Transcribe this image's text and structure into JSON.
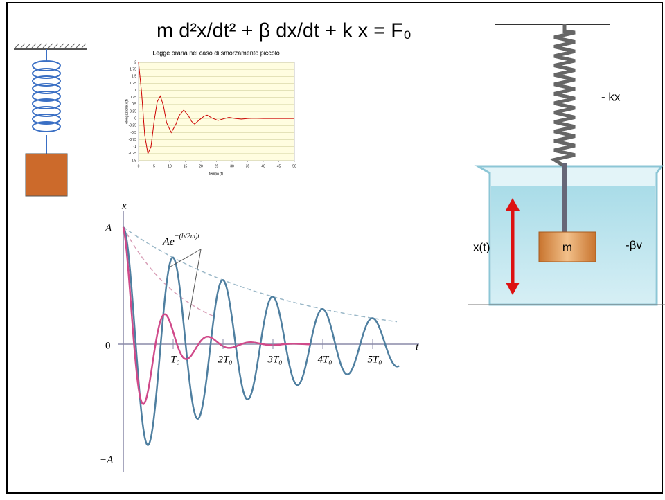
{
  "slide": {
    "equation": "m d²x/dt² + β dx/dt + k x = F₀"
  },
  "chart_data": {
    "type": "line",
    "title": "Legge oraria nel caso di smorzamento piccolo",
    "x_label": "tempo (t)",
    "y_label": "elongazione x(t)",
    "x": [
      0,
      1,
      2,
      3,
      4,
      5,
      6,
      7,
      8,
      9,
      10.5,
      12,
      13,
      14.5,
      16,
      17,
      18,
      19.5,
      21,
      22,
      23.5,
      25.5,
      27,
      29,
      31,
      33,
      35,
      37,
      40,
      45,
      50
    ],
    "values": [
      2,
      0.9,
      -0.6,
      -1.25,
      -1.0,
      -0.1,
      0.6,
      0.8,
      0.45,
      -0.15,
      -0.5,
      -0.2,
      0.1,
      0.3,
      0.1,
      -0.1,
      -0.2,
      -0.05,
      0.08,
      0.12,
      0.02,
      -0.07,
      -0.02,
      0.04,
      0,
      -0.02,
      0,
      0.01,
      0,
      0,
      0
    ],
    "color": "#cc0000",
    "xlim": [
      0,
      50
    ],
    "ylim": [
      -1.5,
      2
    ],
    "xticks": [
      0,
      5,
      10,
      15,
      20,
      25,
      30,
      35,
      40,
      45,
      50
    ],
    "yticks": [
      -1.5,
      -1.25,
      -1,
      -0.75,
      -0.5,
      -0.25,
      0,
      0.25,
      0.5,
      0.75,
      1,
      1.25,
      1.5,
      1.75,
      2
    ],
    "grid": true
  },
  "damped_plot": {
    "axis_y": "x",
    "axis_x": "t",
    "amplitude": "A",
    "origin": "0",
    "negative_amplitude": "−A",
    "envelope": "Ae",
    "envelope_exponent": "−(b/2m)t",
    "period_marks": [
      "T₀",
      "2T₀",
      "3T₀",
      "4T₀",
      "5T₀"
    ]
  },
  "beaker": {
    "spring_force": "- kx",
    "displacement": "x(t)",
    "mass": "m",
    "damping_force": "-βv"
  }
}
